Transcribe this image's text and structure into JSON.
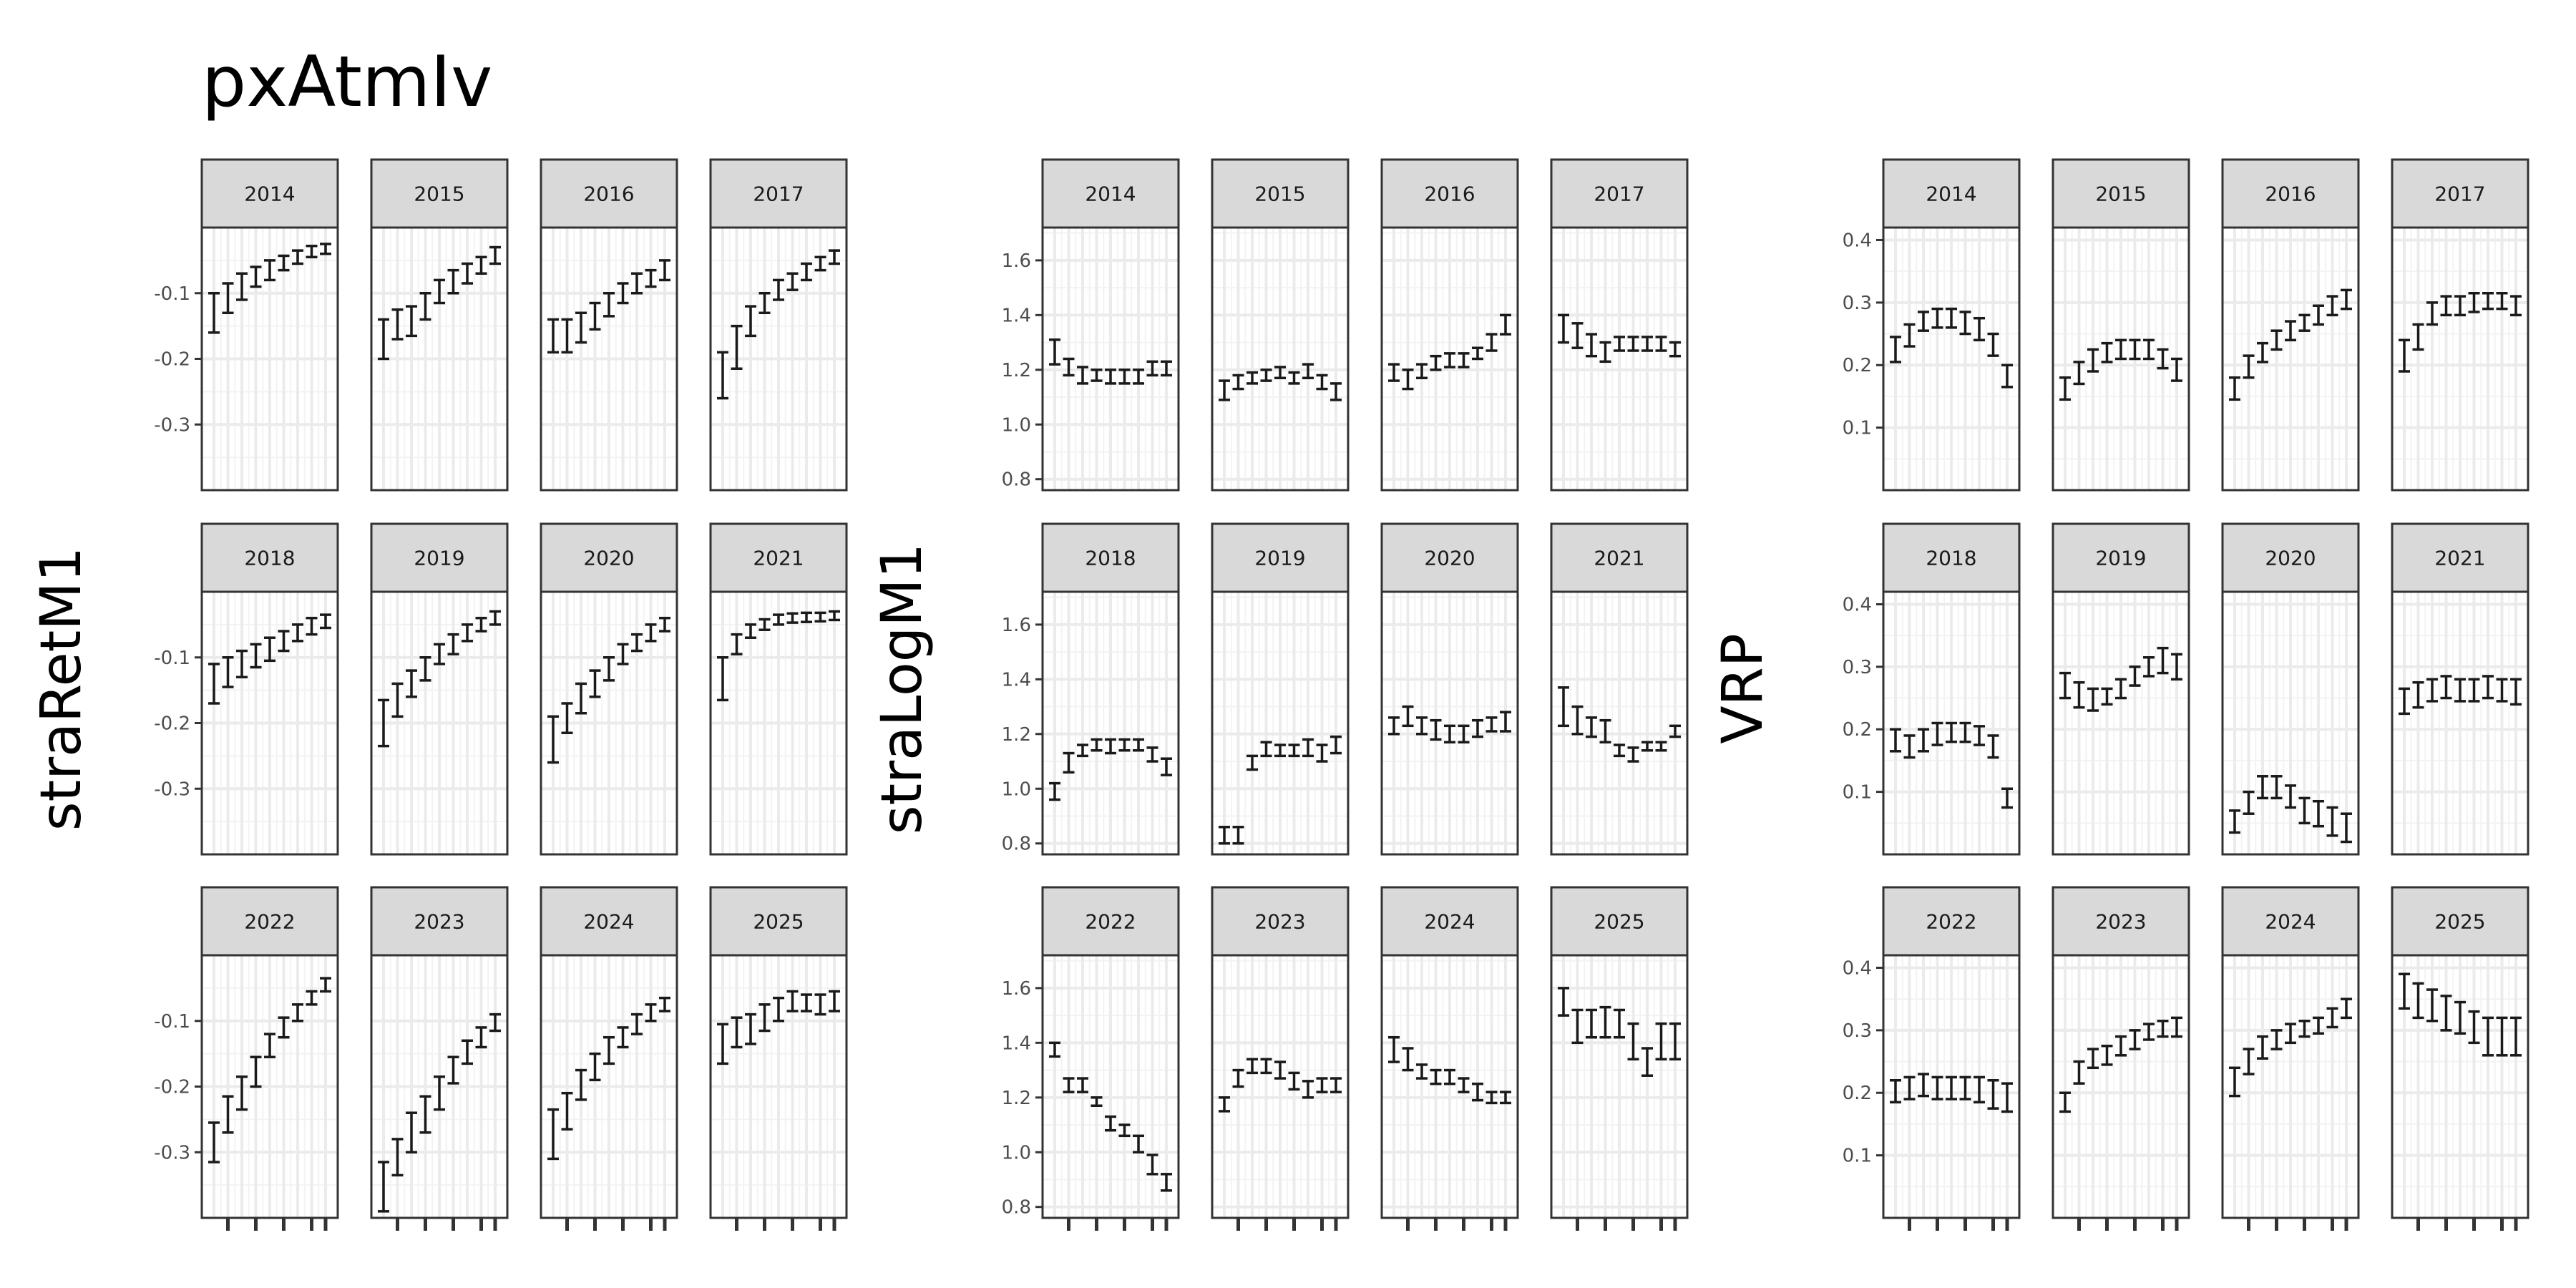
{
  "title": "pxAtmIv",
  "colors": {
    "strip_bg": "#d9d9d9",
    "panel_border": "#333333",
    "grid_major": "#ebebeb",
    "grid_minor": "#f3f3f3",
    "mark": "#1a1a1a"
  },
  "chart_data": [
    {
      "type": "errorbar",
      "ylabel": "straRetM1",
      "ylim": [
        -0.4,
        0.0
      ],
      "yticks": [
        -0.3,
        -0.2,
        -0.1
      ],
      "ytick_labels": [
        "-0.3",
        "-0.2",
        "-0.1"
      ],
      "facets": [
        {
          "label": "2014",
          "lo": [
            -0.16,
            -0.13,
            -0.11,
            -0.09,
            -0.08,
            -0.065,
            -0.055,
            -0.045,
            -0.04
          ],
          "hi": [
            -0.1,
            -0.085,
            -0.07,
            -0.06,
            -0.05,
            -0.043,
            -0.035,
            -0.028,
            -0.025
          ]
        },
        {
          "label": "2015",
          "lo": [
            -0.2,
            -0.17,
            -0.165,
            -0.14,
            -0.115,
            -0.1,
            -0.085,
            -0.07,
            -0.055
          ],
          "hi": [
            -0.14,
            -0.125,
            -0.12,
            -0.1,
            -0.08,
            -0.065,
            -0.055,
            -0.045,
            -0.03
          ]
        },
        {
          "label": "2016",
          "lo": [
            -0.19,
            -0.19,
            -0.175,
            -0.155,
            -0.135,
            -0.115,
            -0.1,
            -0.09,
            -0.08
          ],
          "hi": [
            -0.14,
            -0.14,
            -0.13,
            -0.115,
            -0.1,
            -0.085,
            -0.07,
            -0.065,
            -0.05
          ]
        },
        {
          "label": "2017",
          "lo": [
            -0.26,
            -0.215,
            -0.165,
            -0.13,
            -0.11,
            -0.095,
            -0.08,
            -0.065,
            -0.055
          ],
          "hi": [
            -0.19,
            -0.15,
            -0.12,
            -0.1,
            -0.08,
            -0.07,
            -0.055,
            -0.045,
            -0.035
          ]
        },
        {
          "label": "2018",
          "lo": [
            -0.17,
            -0.145,
            -0.13,
            -0.115,
            -0.105,
            -0.09,
            -0.075,
            -0.065,
            -0.055
          ],
          "hi": [
            -0.11,
            -0.1,
            -0.09,
            -0.08,
            -0.07,
            -0.06,
            -0.05,
            -0.04,
            -0.035
          ]
        },
        {
          "label": "2019",
          "lo": [
            -0.235,
            -0.19,
            -0.16,
            -0.135,
            -0.11,
            -0.095,
            -0.075,
            -0.06,
            -0.05
          ],
          "hi": [
            -0.165,
            -0.14,
            -0.12,
            -0.1,
            -0.08,
            -0.065,
            -0.05,
            -0.04,
            -0.03
          ]
        },
        {
          "label": "2020",
          "lo": [
            -0.26,
            -0.215,
            -0.185,
            -0.16,
            -0.135,
            -0.11,
            -0.09,
            -0.075,
            -0.06
          ],
          "hi": [
            -0.19,
            -0.17,
            -0.14,
            -0.12,
            -0.1,
            -0.08,
            -0.065,
            -0.05,
            -0.04
          ]
        },
        {
          "label": "2021",
          "lo": [
            -0.165,
            -0.095,
            -0.07,
            -0.058,
            -0.05,
            -0.047,
            -0.046,
            -0.045,
            -0.043
          ],
          "hi": [
            -0.1,
            -0.065,
            -0.05,
            -0.042,
            -0.035,
            -0.033,
            -0.032,
            -0.032,
            -0.03
          ]
        },
        {
          "label": "2022",
          "lo": [
            -0.315,
            -0.27,
            -0.235,
            -0.2,
            -0.155,
            -0.125,
            -0.1,
            -0.075,
            -0.055
          ],
          "hi": [
            -0.255,
            -0.215,
            -0.185,
            -0.155,
            -0.12,
            -0.095,
            -0.075,
            -0.055,
            -0.035
          ]
        },
        {
          "label": "2023",
          "lo": [
            -0.39,
            -0.335,
            -0.3,
            -0.27,
            -0.235,
            -0.195,
            -0.165,
            -0.14,
            -0.115
          ],
          "hi": [
            -0.315,
            -0.28,
            -0.24,
            -0.215,
            -0.185,
            -0.155,
            -0.13,
            -0.11,
            -0.09
          ]
        },
        {
          "label": "2024",
          "lo": [
            -0.31,
            -0.265,
            -0.22,
            -0.19,
            -0.165,
            -0.14,
            -0.12,
            -0.1,
            -0.085
          ],
          "hi": [
            -0.235,
            -0.21,
            -0.175,
            -0.15,
            -0.125,
            -0.11,
            -0.09,
            -0.075,
            -0.065
          ]
        },
        {
          "label": "2025",
          "lo": [
            -0.165,
            -0.14,
            -0.135,
            -0.115,
            -0.1,
            -0.085,
            -0.085,
            -0.09,
            -0.085
          ],
          "hi": [
            -0.105,
            -0.095,
            -0.09,
            -0.075,
            -0.065,
            -0.055,
            -0.06,
            -0.06,
            -0.055
          ]
        }
      ]
    },
    {
      "type": "errorbar",
      "ylabel": "straLogM1",
      "ylim": [
        0.76,
        1.72
      ],
      "yticks": [
        0.8,
        1.0,
        1.2,
        1.4,
        1.6
      ],
      "ytick_labels": [
        "0.8",
        "1.0",
        "1.2",
        "1.4",
        "1.6"
      ],
      "facets": [
        {
          "label": "2014",
          "lo": [
            1.22,
            1.18,
            1.15,
            1.16,
            1.15,
            1.15,
            1.15,
            1.18,
            1.18
          ],
          "hi": [
            1.31,
            1.24,
            1.21,
            1.2,
            1.2,
            1.2,
            1.2,
            1.23,
            1.23
          ]
        },
        {
          "label": "2015",
          "lo": [
            1.09,
            1.13,
            1.15,
            1.16,
            1.17,
            1.15,
            1.17,
            1.13,
            1.09
          ],
          "hi": [
            1.16,
            1.18,
            1.19,
            1.2,
            1.21,
            1.19,
            1.22,
            1.18,
            1.15
          ]
        },
        {
          "label": "2016",
          "lo": [
            1.16,
            1.13,
            1.17,
            1.2,
            1.21,
            1.21,
            1.24,
            1.27,
            1.33
          ],
          "hi": [
            1.22,
            1.2,
            1.22,
            1.25,
            1.26,
            1.26,
            1.28,
            1.33,
            1.4
          ]
        },
        {
          "label": "2017",
          "lo": [
            1.3,
            1.28,
            1.25,
            1.23,
            1.27,
            1.27,
            1.27,
            1.27,
            1.25
          ],
          "hi": [
            1.4,
            1.37,
            1.33,
            1.3,
            1.32,
            1.32,
            1.32,
            1.32,
            1.3
          ]
        },
        {
          "label": "2018",
          "lo": [
            0.96,
            1.06,
            1.12,
            1.14,
            1.13,
            1.14,
            1.14,
            1.1,
            1.05
          ],
          "hi": [
            1.02,
            1.13,
            1.16,
            1.18,
            1.18,
            1.18,
            1.18,
            1.15,
            1.11
          ]
        },
        {
          "label": "2019",
          "lo": [
            0.8,
            0.8,
            1.07,
            1.12,
            1.12,
            1.12,
            1.12,
            1.1,
            1.13
          ],
          "hi": [
            0.86,
            0.86,
            1.12,
            1.17,
            1.16,
            1.16,
            1.18,
            1.16,
            1.19
          ]
        },
        {
          "label": "2020",
          "lo": [
            1.2,
            1.23,
            1.2,
            1.18,
            1.17,
            1.17,
            1.19,
            1.21,
            1.21
          ],
          "hi": [
            1.26,
            1.3,
            1.26,
            1.25,
            1.23,
            1.23,
            1.25,
            1.26,
            1.28
          ]
        },
        {
          "label": "2021",
          "lo": [
            1.23,
            1.2,
            1.19,
            1.17,
            1.12,
            1.1,
            1.14,
            1.14,
            1.19
          ],
          "hi": [
            1.37,
            1.3,
            1.26,
            1.25,
            1.16,
            1.15,
            1.17,
            1.17,
            1.23
          ]
        },
        {
          "label": "2022",
          "lo": [
            1.35,
            1.22,
            1.22,
            1.17,
            1.08,
            1.06,
            1.0,
            0.92,
            0.86
          ],
          "hi": [
            1.4,
            1.27,
            1.27,
            1.2,
            1.13,
            1.1,
            1.06,
            0.99,
            0.92
          ]
        },
        {
          "label": "2023",
          "lo": [
            1.15,
            1.24,
            1.29,
            1.29,
            1.27,
            1.23,
            1.2,
            1.22,
            1.22
          ],
          "hi": [
            1.2,
            1.3,
            1.34,
            1.34,
            1.33,
            1.29,
            1.26,
            1.27,
            1.27
          ]
        },
        {
          "label": "2024",
          "lo": [
            1.33,
            1.3,
            1.27,
            1.25,
            1.25,
            1.22,
            1.19,
            1.18,
            1.18
          ],
          "hi": [
            1.42,
            1.38,
            1.32,
            1.3,
            1.3,
            1.27,
            1.25,
            1.22,
            1.22
          ]
        },
        {
          "label": "2025",
          "lo": [
            1.5,
            1.4,
            1.42,
            1.42,
            1.42,
            1.34,
            1.28,
            1.34,
            1.34
          ],
          "hi": [
            1.6,
            1.52,
            1.52,
            1.53,
            1.52,
            1.47,
            1.38,
            1.47,
            1.47
          ]
        }
      ]
    },
    {
      "type": "errorbar",
      "ylabel": "VRP",
      "ylim": [
        0.0,
        0.42
      ],
      "yticks": [
        0.1,
        0.2,
        0.3,
        0.4
      ],
      "ytick_labels": [
        "0.1",
        "0.2",
        "0.3",
        "0.4"
      ],
      "facets": [
        {
          "label": "2014",
          "lo": [
            0.205,
            0.23,
            0.255,
            0.26,
            0.26,
            0.25,
            0.24,
            0.215,
            0.165
          ],
          "hi": [
            0.245,
            0.265,
            0.285,
            0.29,
            0.29,
            0.285,
            0.275,
            0.25,
            0.2
          ]
        },
        {
          "label": "2015",
          "lo": [
            0.145,
            0.17,
            0.19,
            0.205,
            0.21,
            0.21,
            0.21,
            0.195,
            0.175
          ],
          "hi": [
            0.18,
            0.205,
            0.225,
            0.235,
            0.24,
            0.24,
            0.24,
            0.225,
            0.21
          ]
        },
        {
          "label": "2016",
          "lo": [
            0.145,
            0.18,
            0.205,
            0.225,
            0.24,
            0.255,
            0.265,
            0.28,
            0.29
          ],
          "hi": [
            0.18,
            0.215,
            0.235,
            0.255,
            0.27,
            0.28,
            0.295,
            0.31,
            0.32
          ]
        },
        {
          "label": "2017",
          "lo": [
            0.19,
            0.225,
            0.265,
            0.28,
            0.28,
            0.285,
            0.29,
            0.29,
            0.28
          ],
          "hi": [
            0.24,
            0.265,
            0.3,
            0.31,
            0.31,
            0.315,
            0.315,
            0.315,
            0.31
          ]
        },
        {
          "label": "2018",
          "lo": [
            0.165,
            0.155,
            0.165,
            0.175,
            0.18,
            0.18,
            0.175,
            0.155,
            0.075
          ],
          "hi": [
            0.2,
            0.19,
            0.2,
            0.21,
            0.21,
            0.21,
            0.205,
            0.19,
            0.105
          ]
        },
        {
          "label": "2019",
          "lo": [
            0.25,
            0.235,
            0.23,
            0.24,
            0.25,
            0.27,
            0.285,
            0.29,
            0.28
          ],
          "hi": [
            0.29,
            0.275,
            0.265,
            0.265,
            0.28,
            0.3,
            0.315,
            0.33,
            0.32
          ]
        },
        {
          "label": "2020",
          "lo": [
            0.035,
            0.065,
            0.09,
            0.09,
            0.075,
            0.05,
            0.045,
            0.03,
            0.02
          ],
          "hi": [
            0.07,
            0.1,
            0.125,
            0.125,
            0.11,
            0.09,
            0.085,
            0.075,
            0.065
          ]
        },
        {
          "label": "2021",
          "lo": [
            0.225,
            0.235,
            0.245,
            0.25,
            0.245,
            0.245,
            0.25,
            0.245,
            0.24
          ],
          "hi": [
            0.265,
            0.275,
            0.28,
            0.285,
            0.28,
            0.28,
            0.285,
            0.28,
            0.28
          ]
        },
        {
          "label": "2022",
          "lo": [
            0.185,
            0.19,
            0.195,
            0.19,
            0.19,
            0.19,
            0.185,
            0.175,
            0.17
          ],
          "hi": [
            0.22,
            0.225,
            0.23,
            0.225,
            0.225,
            0.225,
            0.225,
            0.22,
            0.215
          ]
        },
        {
          "label": "2023",
          "lo": [
            0.17,
            0.215,
            0.24,
            0.245,
            0.26,
            0.27,
            0.285,
            0.29,
            0.29
          ],
          "hi": [
            0.2,
            0.25,
            0.27,
            0.275,
            0.29,
            0.3,
            0.31,
            0.315,
            0.32
          ]
        },
        {
          "label": "2024",
          "lo": [
            0.195,
            0.23,
            0.255,
            0.27,
            0.28,
            0.29,
            0.295,
            0.305,
            0.32
          ],
          "hi": [
            0.24,
            0.27,
            0.29,
            0.3,
            0.31,
            0.315,
            0.32,
            0.335,
            0.35
          ]
        },
        {
          "label": "2025",
          "lo": [
            0.335,
            0.32,
            0.315,
            0.3,
            0.295,
            0.28,
            0.26,
            0.26,
            0.26
          ],
          "hi": [
            0.39,
            0.375,
            0.365,
            0.355,
            0.345,
            0.33,
            0.32,
            0.32,
            0.32
          ]
        }
      ]
    }
  ]
}
